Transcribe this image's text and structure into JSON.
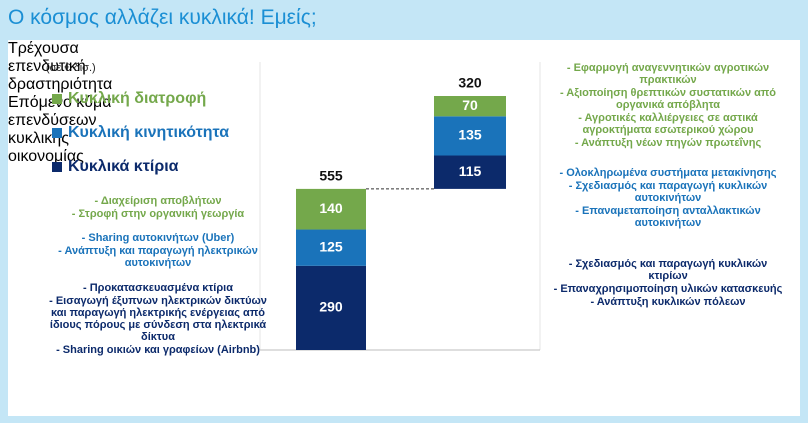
{
  "chart_data": {
    "type": "waterfall-stack",
    "title": "Ο κόσμος αλλάζει κυκλικά! Εμείς;",
    "unit_label": "(σε € δισ.)",
    "categories": [
      "Τρέχουσα επενδυτική δραστηριότητα",
      "Επόμενο κύμα επενδύσεων κυκλικής οικονομίας"
    ],
    "series": [
      {
        "name": "Κυκλικά κτίρια",
        "color": "#0c2a6b",
        "values": [
          290,
          115
        ]
      },
      {
        "name": "Κυκλική κινητικότητα",
        "color": "#1a73ba",
        "values": [
          125,
          135
        ]
      },
      {
        "name": "Κυκλική διατροφή",
        "color": "#74a84b",
        "values": [
          140,
          70
        ]
      }
    ],
    "totals": [
      555,
      320
    ],
    "notes_left": [
      {
        "color": "#74a84b",
        "items": [
          "- Διαχείριση αποβλήτων",
          "- Στροφή στην οργανική γεωργία"
        ]
      },
      {
        "color": "#1a73ba",
        "items": [
          "- Sharing αυτοκινήτων (Uber)",
          "- Ανάπτυξη και παραγωγή ηλεκτρικών αυτοκινήτων"
        ]
      },
      {
        "color": "#0c2a6b",
        "items": [
          "- Προκατασκευασμένα κτίρια",
          "- Εισαγωγή έξυπνων ηλεκτρικών δικτύων και παραγωγή ηλεκτρικής ενέργειας από ίδιους πόρους με σύνδεση στα ηλεκτρικά δίκτυα",
          "- Sharing οικιών και γραφείων (Airbnb)"
        ]
      }
    ],
    "notes_right": [
      {
        "color": "#74a84b",
        "items": [
          "- Εφαρμογή αναγεννητικών αγροτικών πρακτικών",
          "- Αξιοποίηση θρεπτικών συστατικών από οργανικά απόβλητα",
          "- Αγροτικές καλλιέργειες σε αστικά αγροκτήματα εσωτερικού χώρου",
          "- Ανάπτυξη νέων πηγών πρωτεΐνης"
        ]
      },
      {
        "color": "#1a73ba",
        "items": [
          "- Ολοκληρωμένα συστήματα μετακίνησης",
          "- Σχεδιασμός και παραγωγή κυκλικών αυτοκινήτων",
          "- Επαναμεταποίηση ανταλλακτικών αυτοκινήτων"
        ]
      },
      {
        "color": "#0c2a6b",
        "items": [
          "- Σχεδιασμός και παραγωγή κυκλικών κτιρίων",
          "- Επαναχρησιμοποίηση υλικών κατασκευής",
          "- Ανάπτυξη κυκλικών πόλεων"
        ]
      }
    ]
  }
}
